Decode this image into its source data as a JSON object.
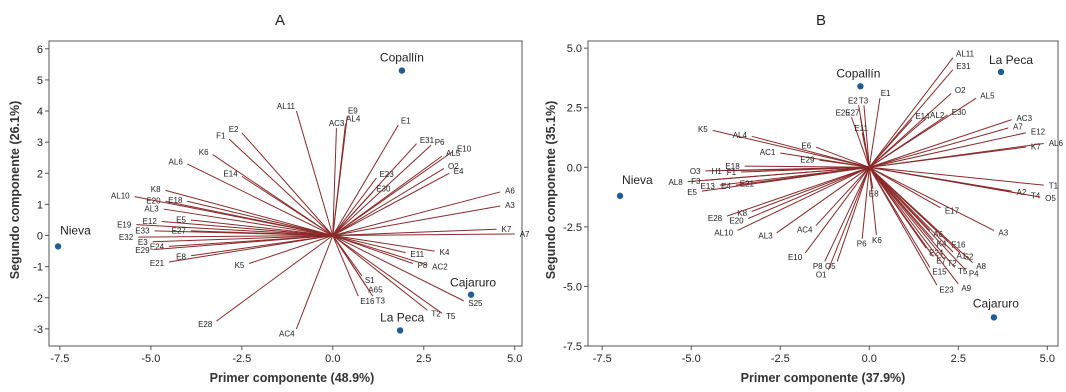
{
  "colors": {
    "vector": "#8b2a2a",
    "point": "#1f5e94",
    "frame": "#555555"
  },
  "chart_data": [
    {
      "type": "scatter",
      "title": "A",
      "xlabel": "Primer componente (48.9%)",
      "ylabel": "Segundo componente (26.1%)",
      "xlim": [
        -7.8,
        5.2
      ],
      "ylim": [
        -3.55,
        6.25
      ],
      "xticks": [
        -7.5,
        -5.0,
        -2.5,
        0.0,
        2.5,
        5.0
      ],
      "xtick_labels": [
        "-7.5",
        "-5.0",
        "-2.5",
        "0.0",
        "2.5",
        "5.0"
      ],
      "yticks": [
        -3,
        -2,
        -1,
        0,
        1,
        2,
        3,
        4,
        5,
        6
      ],
      "ytick_labels": [
        "-3",
        "-2",
        "-1",
        "0",
        "1",
        "2",
        "3",
        "4",
        "5",
        "6"
      ],
      "points": [
        {
          "label": "Nieva",
          "x": -7.55,
          "y": -0.35
        },
        {
          "label": "Copallín",
          "x": 1.9,
          "y": 5.3
        },
        {
          "label": "Cajaruro",
          "x": 3.8,
          "y": -1.9
        },
        {
          "label": "La Peca",
          "x": 1.85,
          "y": -3.05
        }
      ],
      "vectors": [
        {
          "label": "AL11",
          "x": -1.0,
          "y": 4.0
        },
        {
          "label": "E9",
          "x": 0.4,
          "y": 3.85
        },
        {
          "label": "AL4",
          "x": 0.35,
          "y": 3.6
        },
        {
          "label": "AC3",
          "x": 0.1,
          "y": 3.45
        },
        {
          "label": "E1",
          "x": 1.8,
          "y": 3.55
        },
        {
          "label": "E2",
          "x": -2.5,
          "y": 3.3
        },
        {
          "label": "F1",
          "x": -2.85,
          "y": 3.1
        },
        {
          "label": "K6",
          "x": -3.3,
          "y": 2.6
        },
        {
          "label": "AL6",
          "x": -4.0,
          "y": 2.3
        },
        {
          "label": "E14",
          "x": -2.5,
          "y": 1.9
        },
        {
          "label": "E31",
          "x": 2.3,
          "y": 2.95
        },
        {
          "label": "P6",
          "x": 2.7,
          "y": 2.9
        },
        {
          "label": "E10",
          "x": 3.3,
          "y": 2.7
        },
        {
          "label": "AL5",
          "x": 3.0,
          "y": 2.55
        },
        {
          "label": "O2",
          "x": 3.05,
          "y": 2.15
        },
        {
          "label": "E4",
          "x": 3.2,
          "y": 2.0
        },
        {
          "label": "E23",
          "x": 1.2,
          "y": 1.85
        },
        {
          "label": "E30",
          "x": 1.1,
          "y": 1.4
        },
        {
          "label": "K8",
          "x": -4.6,
          "y": 1.45
        },
        {
          "label": "E20",
          "x": -4.6,
          "y": 1.1
        },
        {
          "label": "E18",
          "x": -4.0,
          "y": 1.1
        },
        {
          "label": "AL10",
          "x": -5.45,
          "y": 1.25
        },
        {
          "label": "AL3",
          "x": -4.65,
          "y": 0.85
        },
        {
          "label": "E5",
          "x": -3.9,
          "y": 0.5
        },
        {
          "label": "E19",
          "x": -5.4,
          "y": 0.35
        },
        {
          "label": "E12",
          "x": -4.7,
          "y": 0.45
        },
        {
          "label": "E33",
          "x": -4.9,
          "y": 0.15
        },
        {
          "label": "E27",
          "x": -3.9,
          "y": 0.15
        },
        {
          "label": "E32",
          "x": -5.35,
          "y": -0.05
        },
        {
          "label": "E3",
          "x": -4.95,
          "y": -0.2
        },
        {
          "label": "E24",
          "x": -4.5,
          "y": -0.35
        },
        {
          "label": "E29",
          "x": -4.9,
          "y": -0.45
        },
        {
          "label": "E8",
          "x": -3.9,
          "y": -0.65
        },
        {
          "label": "E21",
          "x": -4.5,
          "y": -0.85
        },
        {
          "label": "K5",
          "x": -2.3,
          "y": -0.9
        },
        {
          "label": "E28",
          "x": -3.2,
          "y": -2.75
        },
        {
          "label": "AC4",
          "x": -1.0,
          "y": -3.0
        },
        {
          "label": "A6",
          "x": 4.6,
          "y": 1.4
        },
        {
          "label": "A3",
          "x": 4.6,
          "y": 0.95
        },
        {
          "label": "K7",
          "x": 4.5,
          "y": 0.2
        },
        {
          "label": "A7",
          "x": 5.0,
          "y": 0.05
        },
        {
          "label": "E11",
          "x": 2.0,
          "y": -0.55
        },
        {
          "label": "K4",
          "x": 2.8,
          "y": -0.5
        },
        {
          "label": "P8",
          "x": 2.2,
          "y": -0.9
        },
        {
          "label": "AC2",
          "x": 2.6,
          "y": -0.95
        },
        {
          "label": "S1",
          "x": 0.8,
          "y": -1.3
        },
        {
          "label": "A65",
          "x": 0.9,
          "y": -1.6
        },
        {
          "label": "E16",
          "x": 0.7,
          "y": -1.95
        },
        {
          "label": "T3",
          "x": 1.1,
          "y": -1.95
        },
        {
          "label": "S25",
          "x": 3.6,
          "y": -2.1
        },
        {
          "label": "T2",
          "x": 2.6,
          "y": -2.4
        },
        {
          "label": "T5",
          "x": 3.0,
          "y": -2.5
        }
      ]
    },
    {
      "type": "scatter",
      "title": "B",
      "xlabel": "Primer componente (37.9%)",
      "ylabel": "Segundo componente (35.1%)",
      "xlim": [
        -7.9,
        5.3
      ],
      "ylim": [
        -7.5,
        5.3
      ],
      "xticks": [
        -7.5,
        -5.0,
        -2.5,
        0.0,
        2.5,
        5.0
      ],
      "xtick_labels": [
        "-7.5",
        "-5.0",
        "-2.5",
        "0.0",
        "2.5",
        "5.0"
      ],
      "yticks": [
        -7.5,
        -5.0,
        -2.5,
        0.0,
        2.5,
        5.0
      ],
      "ytick_labels": [
        "-7.5",
        "-5.0",
        "-2.5",
        "0.0",
        "2.5",
        "5.0"
      ],
      "points": [
        {
          "label": "Nieva",
          "x": -7.0,
          "y": -1.2
        },
        {
          "label": "Copallín",
          "x": -0.25,
          "y": 3.4
        },
        {
          "label": "La Peca",
          "x": 3.7,
          "y": 4.0
        },
        {
          "label": "Cajaruro",
          "x": 3.5,
          "y": -6.3
        }
      ],
      "vectors": [
        {
          "label": "AL11",
          "x": 2.35,
          "y": 4.6
        },
        {
          "label": "E31",
          "x": 2.35,
          "y": 4.1
        },
        {
          "label": "O2",
          "x": 2.3,
          "y": 3.1
        },
        {
          "label": "AL5",
          "x": 3.0,
          "y": 2.9
        },
        {
          "label": "E30",
          "x": 2.2,
          "y": 2.2
        },
        {
          "label": "AL2",
          "x": 1.6,
          "y": 2.05
        },
        {
          "label": "E14",
          "x": 1.2,
          "y": 2.0
        },
        {
          "label": "AC3",
          "x": 4.0,
          "y": 2.0
        },
        {
          "label": "A7",
          "x": 3.9,
          "y": 1.65
        },
        {
          "label": "E12",
          "x": 4.4,
          "y": 1.45
        },
        {
          "label": "AL6",
          "x": 4.9,
          "y": 1.0
        },
        {
          "label": "K7",
          "x": 4.4,
          "y": 0.85
        },
        {
          "label": "E1",
          "x": 0.3,
          "y": 2.9
        },
        {
          "label": "E2",
          "x": -0.3,
          "y": 2.6
        },
        {
          "label": "T3",
          "x": -0.15,
          "y": 2.6
        },
        {
          "label": "E25",
          "x": -0.5,
          "y": 2.1
        },
        {
          "label": "E27",
          "x": -0.25,
          "y": 2.1
        },
        {
          "label": "E11",
          "x": -0.2,
          "y": 1.45
        },
        {
          "label": "K5",
          "x": -4.4,
          "y": 1.55
        },
        {
          "label": "AL4",
          "x": -3.3,
          "y": 1.3
        },
        {
          "label": "E6",
          "x": -1.5,
          "y": 0.85
        },
        {
          "label": "AC1",
          "x": -2.5,
          "y": 0.6
        },
        {
          "label": "E29",
          "x": -1.4,
          "y": 0.3
        },
        {
          "label": "E18",
          "x": -3.5,
          "y": 0.05
        },
        {
          "label": "O3",
          "x": -4.6,
          "y": -0.15
        },
        {
          "label": "H1",
          "x": -4.0,
          "y": -0.15
        },
        {
          "label": "F1",
          "x": -3.6,
          "y": -0.2
        },
        {
          "label": "AL8",
          "x": -5.1,
          "y": -0.6
        },
        {
          "label": "F3",
          "x": -4.6,
          "y": -0.55
        },
        {
          "label": "E13",
          "x": -4.2,
          "y": -0.75
        },
        {
          "label": "E4",
          "x": -3.75,
          "y": -0.75
        },
        {
          "label": "E21",
          "x": -3.1,
          "y": -0.65
        },
        {
          "label": "E5",
          "x": -4.7,
          "y": -1.0
        },
        {
          "label": "E8",
          "x": 0.1,
          "y": -0.9
        },
        {
          "label": "T1",
          "x": 4.9,
          "y": -0.75
        },
        {
          "label": "A2",
          "x": 4.0,
          "y": -1.0
        },
        {
          "label": "T4",
          "x": 4.4,
          "y": -1.15
        },
        {
          "label": "O5",
          "x": 4.8,
          "y": -1.25
        },
        {
          "label": "E17",
          "x": 2.0,
          "y": -1.7
        },
        {
          "label": "A3",
          "x": 3.5,
          "y": -2.65
        },
        {
          "label": "K8",
          "x": -3.3,
          "y": -1.85
        },
        {
          "label": "E28",
          "x": -4.0,
          "y": -2.05
        },
        {
          "label": "E20",
          "x": -3.4,
          "y": -2.15
        },
        {
          "label": "AL10",
          "x": -3.7,
          "y": -2.65
        },
        {
          "label": "AL3",
          "x": -2.6,
          "y": -2.75
        },
        {
          "label": "AC4",
          "x": -1.5,
          "y": -2.45
        },
        {
          "label": "E10",
          "x": -1.8,
          "y": -3.6
        },
        {
          "label": "P8",
          "x": -1.25,
          "y": -3.95
        },
        {
          "label": "O5",
          "x": -0.9,
          "y": -3.95
        },
        {
          "label": "O1",
          "x": -1.15,
          "y": -4.3
        },
        {
          "label": "P6",
          "x": -0.2,
          "y": -3.0
        },
        {
          "label": "K6",
          "x": 0.2,
          "y": -2.85
        },
        {
          "label": "A6",
          "x": 1.7,
          "y": -2.65
        },
        {
          "label": "K4",
          "x": 1.8,
          "y": -3.05
        },
        {
          "label": "E16",
          "x": 2.2,
          "y": -3.1
        },
        {
          "label": "E24",
          "x": 1.6,
          "y": -3.4
        },
        {
          "label": "A1",
          "x": 2.35,
          "y": -3.55
        },
        {
          "label": "S2",
          "x": 2.55,
          "y": -3.6
        },
        {
          "label": "E7",
          "x": 1.8,
          "y": -3.75
        },
        {
          "label": "T2",
          "x": 2.1,
          "y": -3.85
        },
        {
          "label": "A8",
          "x": 2.9,
          "y": -4.0
        },
        {
          "label": "E15",
          "x": 1.7,
          "y": -4.2
        },
        {
          "label": "T5",
          "x": 2.4,
          "y": -4.2
        },
        {
          "label": "P4",
          "x": 2.7,
          "y": -4.3
        },
        {
          "label": "A9",
          "x": 2.5,
          "y": -4.9
        },
        {
          "label": "E23",
          "x": 1.9,
          "y": -4.95
        }
      ]
    }
  ]
}
